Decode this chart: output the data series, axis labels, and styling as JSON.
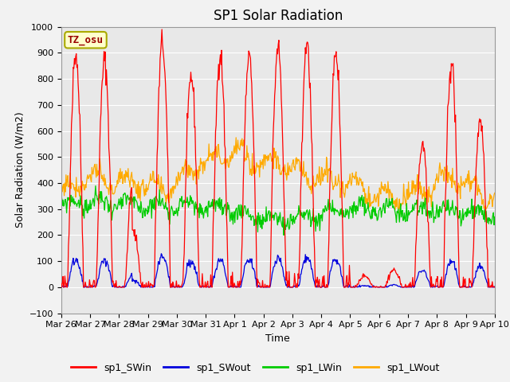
{
  "title": "SP1 Solar Radiation",
  "ylabel": "Solar Radiation (W/m2)",
  "xlabel": "Time",
  "ylim": [
    -100,
    1000
  ],
  "yticks": [
    -100,
    0,
    100,
    200,
    300,
    400,
    500,
    600,
    700,
    800,
    900,
    1000
  ],
  "xtick_labels": [
    "Mar 26",
    "Mar 27",
    "Mar 28",
    "Mar 29",
    "Mar 30",
    "Mar 31",
    "Apr 1",
    "Apr 2",
    "Apr 3",
    "Apr 4",
    "Apr 5",
    "Apr 6",
    "Apr 7",
    "Apr 8",
    "Apr 9",
    "Apr 10"
  ],
  "colors": {
    "sp1_SWin": "#ff0000",
    "sp1_SWout": "#0000dd",
    "sp1_LWin": "#00cc00",
    "sp1_LWout": "#ffaa00"
  },
  "legend_labels": [
    "sp1_SWin",
    "sp1_SWout",
    "sp1_LWin",
    "sp1_LWout"
  ],
  "tz_label": "TZ_osu",
  "background_color": "#e8e8e8",
  "grid_color": "#ffffff",
  "title_fontsize": 12,
  "label_fontsize": 9,
  "tick_fontsize": 8
}
